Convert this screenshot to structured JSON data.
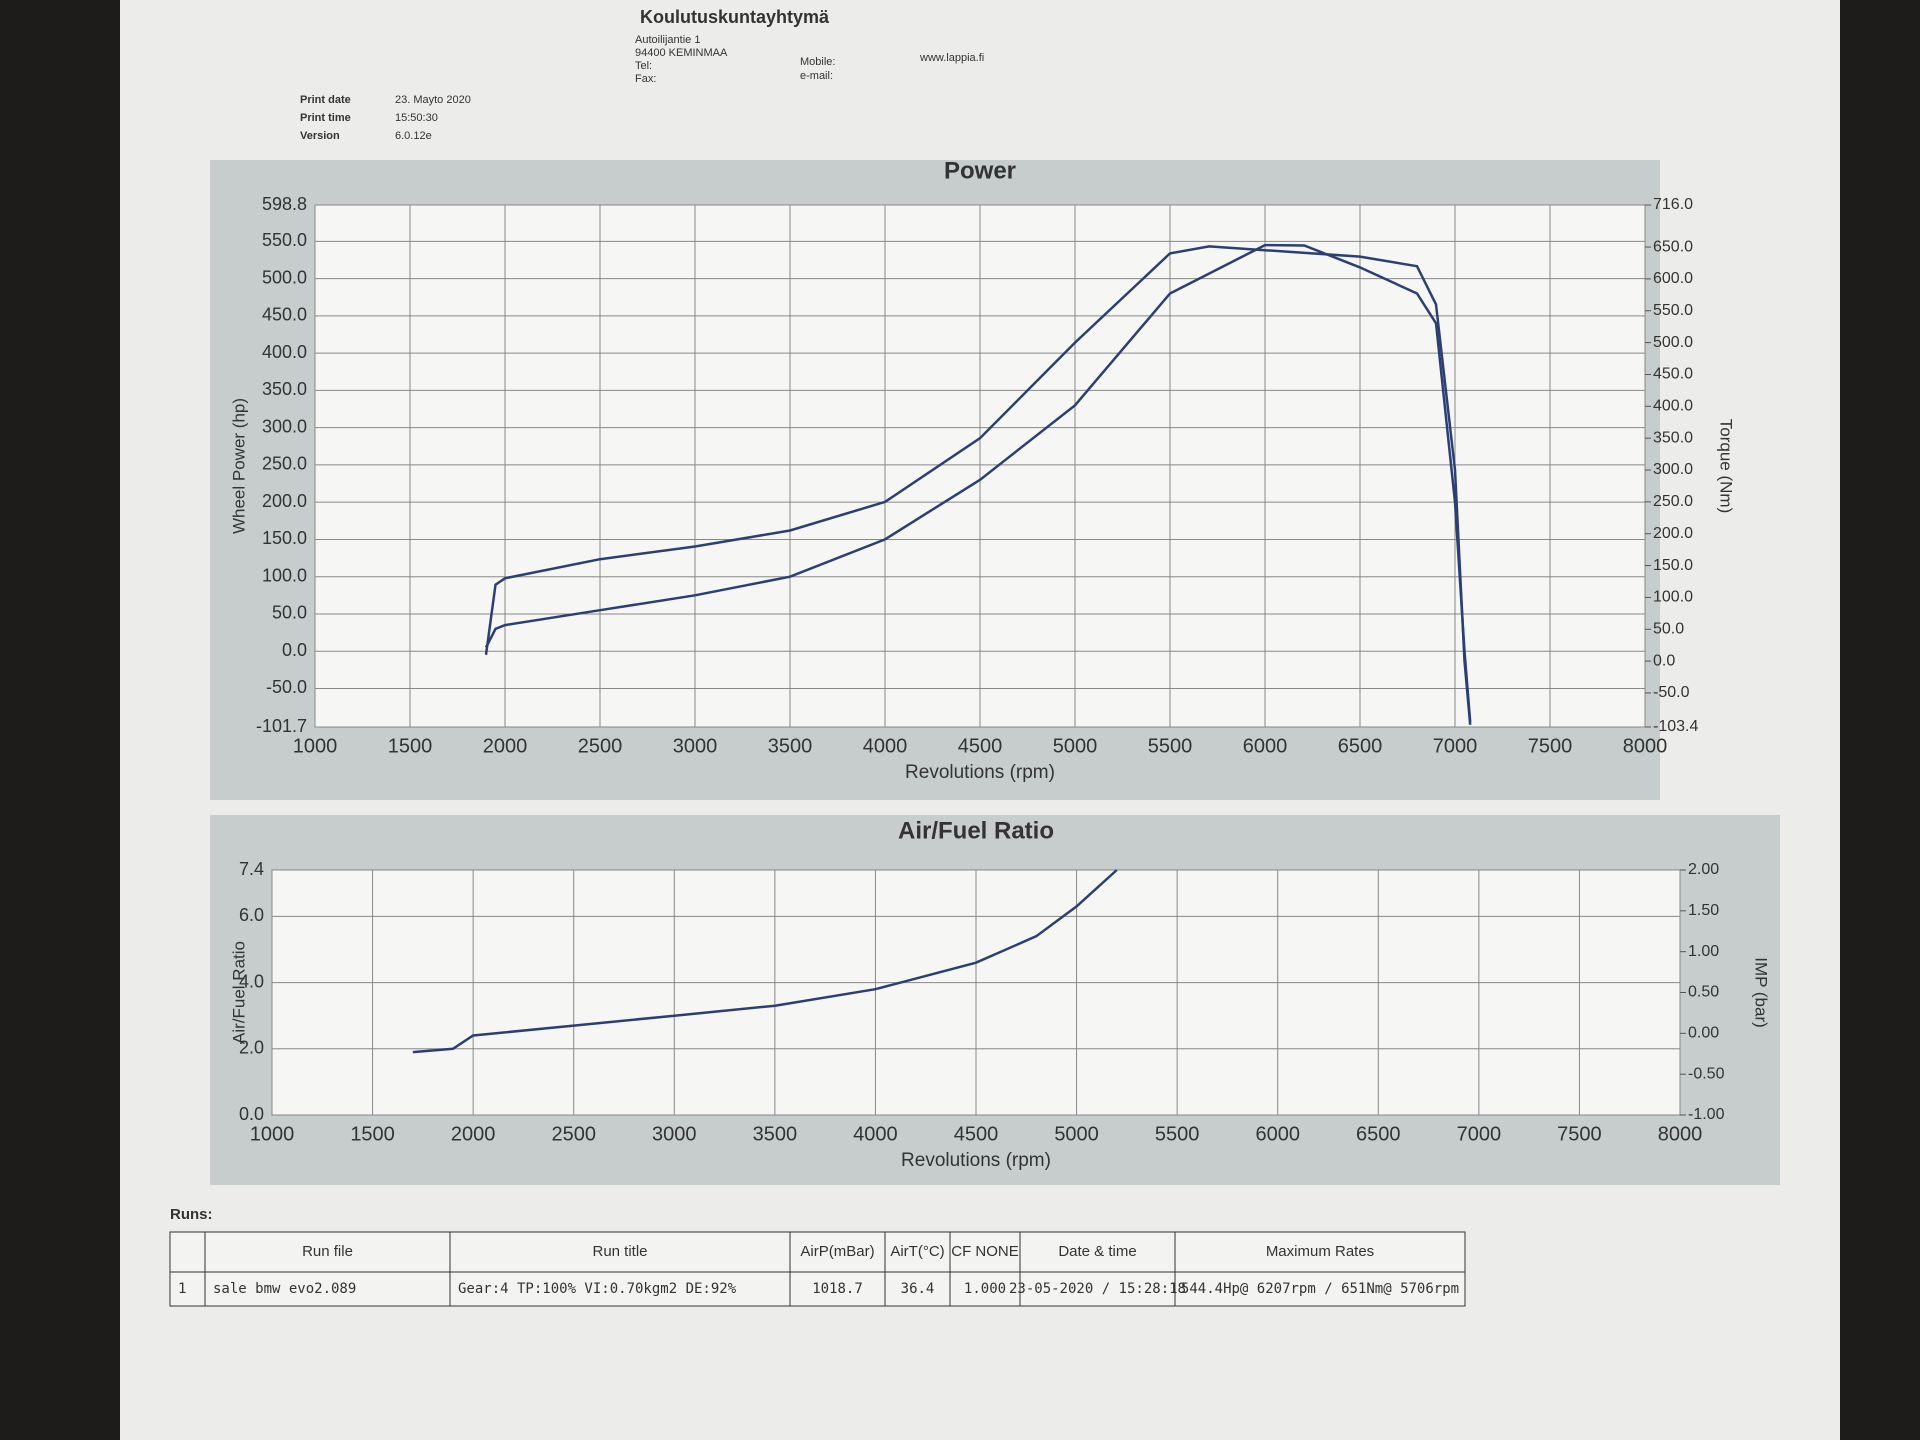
{
  "header": {
    "organization": "Koulutuskuntayhtymä",
    "address": [
      "Autoilijantie 1",
      "94400 KEMINMAA",
      "Tel:",
      "Fax:"
    ],
    "contact_labels": [
      "Mobile:",
      "e-mail:"
    ],
    "website": "www.lappia.fi",
    "print_info": [
      {
        "label": "Print date",
        "value": "23. Mayto 2020"
      },
      {
        "label": "Print time",
        "value": "15:50:30"
      },
      {
        "label": "Version",
        "value": "6.0.12e"
      }
    ]
  },
  "chart_data": [
    {
      "type": "line",
      "title": "Power",
      "x_label": "Revolutions (rpm)",
      "y_label": "Wheel Power (hp)",
      "y2_label": "Torque (Nm)",
      "xlim": [
        1000,
        8000
      ],
      "xticks": [
        1000,
        1500,
        2000,
        2500,
        3000,
        3500,
        4000,
        4500,
        5000,
        5500,
        6000,
        6500,
        7000,
        7500,
        8000
      ],
      "ylim": [
        -101.7,
        598.8
      ],
      "yticks": [
        {
          "value": -101.7,
          "label": "-101.7"
        },
        {
          "value": -50,
          "label": "-50.0"
        },
        {
          "value": 0,
          "label": "0.0"
        },
        {
          "value": 50,
          "label": "50.0"
        },
        {
          "value": 100,
          "label": "100.0"
        },
        {
          "value": 150,
          "label": "150.0"
        },
        {
          "value": 200,
          "label": "200.0"
        },
        {
          "value": 250,
          "label": "250.0"
        },
        {
          "value": 300,
          "label": "300.0"
        },
        {
          "value": 350,
          "label": "350.0"
        },
        {
          "value": 400,
          "label": "400.0"
        },
        {
          "value": 450,
          "label": "450.0"
        },
        {
          "value": 500,
          "label": "500.0"
        },
        {
          "value": 550,
          "label": "550.0"
        },
        {
          "value": 598.8,
          "label": "598.8"
        }
      ],
      "y2lim": [
        -103.4,
        716
      ],
      "y2ticks": [
        {
          "value": -103.4,
          "label": "-103.4"
        },
        {
          "value": -50,
          "label": "-50.0"
        },
        {
          "value": 0,
          "label": "0.0"
        },
        {
          "value": 50,
          "label": "50.0"
        },
        {
          "value": 100,
          "label": "100.0"
        },
        {
          "value": 150,
          "label": "150.0"
        },
        {
          "value": 200,
          "label": "200.0"
        },
        {
          "value": 250,
          "label": "250.0"
        },
        {
          "value": 300,
          "label": "300.0"
        },
        {
          "value": 350,
          "label": "350.0"
        },
        {
          "value": 400,
          "label": "400.0"
        },
        {
          "value": 450,
          "label": "450.0"
        },
        {
          "value": 500,
          "label": "500.0"
        },
        {
          "value": 550,
          "label": "550.0"
        },
        {
          "value": 600,
          "label": "600.0"
        },
        {
          "value": 650,
          "label": "650.0"
        },
        {
          "value": 716,
          "label": "716.0"
        }
      ],
      "grid": true,
      "series": [
        {
          "color": "#2c3f73",
          "x": [
            1900,
            1950,
            2000,
            2500,
            3000,
            3500,
            4000,
            4500,
            5000,
            5500,
            6000,
            6207,
            6500,
            6800,
            6900,
            7000,
            7050,
            7080
          ],
          "values": [
            5,
            30,
            35,
            55,
            75,
            100,
            150,
            230,
            330,
            480,
            545,
            544.4,
            515,
            480,
            440,
            200,
            0,
            -95
          ]
        },
        {
          "color": "#2c3f73",
          "axis": "y2",
          "x": [
            1900,
            1950,
            2000,
            2500,
            3000,
            3500,
            4000,
            4500,
            5000,
            5500,
            5706,
            6000,
            6500,
            6800,
            6900,
            7000,
            7050,
            7080
          ],
          "values": [
            10,
            120,
            130,
            160,
            180,
            205,
            250,
            350,
            500,
            640,
            651,
            645,
            635,
            620,
            560,
            300,
            0,
            -100
          ]
        }
      ]
    },
    {
      "type": "line",
      "title": "Air/Fuel Ratio",
      "x_label": "Revolutions (rpm)",
      "y_label": "Air/Fuel Ratio",
      "y2_label": "IMP (bar)",
      "xlim": [
        1000,
        8000
      ],
      "xticks": [
        1000,
        1500,
        2000,
        2500,
        3000,
        3500,
        4000,
        4500,
        5000,
        5500,
        6000,
        6500,
        7000,
        7500,
        8000
      ],
      "ylim": [
        0,
        7.4
      ],
      "yticks": [
        {
          "value": 0,
          "label": "0.0"
        },
        {
          "value": 2,
          "label": "2.0"
        },
        {
          "value": 4,
          "label": "4.0"
        },
        {
          "value": 6,
          "label": "6.0"
        },
        {
          "value": 7.4,
          "label": "7.4"
        }
      ],
      "y2lim": [
        -1,
        2
      ],
      "y2ticks": [
        {
          "value": -1,
          "label": "-1.00"
        },
        {
          "value": -0.5,
          "label": "-0.50"
        },
        {
          "value": 0,
          "label": "0.00"
        },
        {
          "value": 0.5,
          "label": "0.50"
        },
        {
          "value": 1,
          "label": "1.00"
        },
        {
          "value": 1.5,
          "label": "1.50"
        },
        {
          "value": 2,
          "label": "2.00"
        }
      ],
      "grid": true,
      "series": [
        {
          "color": "#2c3f73",
          "x": [
            1700,
            1900,
            2000,
            2500,
            3000,
            3500,
            4000,
            4500,
            4800,
            5000,
            5200
          ],
          "values": [
            1.9,
            2.0,
            2.4,
            2.7,
            3.0,
            3.3,
            3.8,
            4.6,
            5.4,
            6.3,
            7.4
          ]
        }
      ]
    }
  ],
  "runs": {
    "label": "Runs:",
    "columns": [
      "Run file",
      "Run title",
      "AirP(mBar)",
      "AirT(°C)",
      "CF NONE",
      "Date & time",
      "Maximum Rates"
    ],
    "rows": [
      [
        "1",
        "sale bmw evo2.089",
        "Gear:4 TP:100% VI:0.70kgm2 DE:92%",
        "1018.7",
        "36.4",
        "1.000",
        "23-05-2020 / 15:28:18",
        "544.4Hp@ 6207rpm / 651Nm@ 5706rpm"
      ]
    ]
  }
}
